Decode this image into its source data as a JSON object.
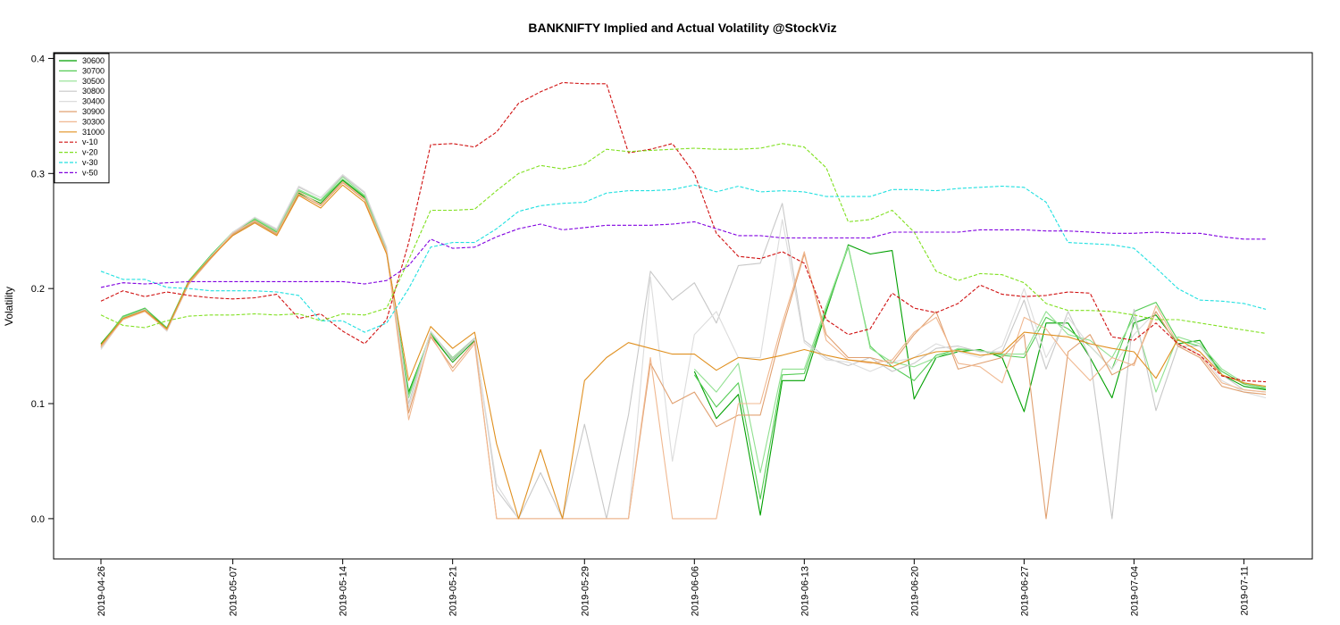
{
  "chart_data": {
    "type": "line",
    "title": "BANKNIFTY Implied and Actual Volatility @StockViz",
    "xlabel": "",
    "ylabel": "Volatility",
    "ylim": [
      -0.035,
      0.405
    ],
    "y_ticks": [
      0.0,
      0.1,
      0.2,
      0.3,
      0.4
    ],
    "y_tick_labels": [
      "0.0",
      "0.1",
      "0.2",
      "0.3",
      "0.4"
    ],
    "x": [
      "2019-04-26",
      "2019-04-29",
      "2019-04-30",
      "2019-05-02",
      "2019-05-03",
      "2019-05-06",
      "2019-05-07",
      "2019-05-08",
      "2019-05-09",
      "2019-05-10",
      "2019-05-13",
      "2019-05-14",
      "2019-05-15",
      "2019-05-16",
      "2019-05-17",
      "2019-05-20",
      "2019-05-21",
      "2019-05-22",
      "2019-05-23",
      "2019-05-24",
      "2019-05-27",
      "2019-05-28",
      "2019-05-29",
      "2019-05-30",
      "2019-05-31",
      "2019-06-03",
      "2019-06-04",
      "2019-06-06",
      "2019-06-07",
      "2019-06-10",
      "2019-06-11",
      "2019-06-12",
      "2019-06-13",
      "2019-06-14",
      "2019-06-17",
      "2019-06-18",
      "2019-06-19",
      "2019-06-20",
      "2019-06-21",
      "2019-06-24",
      "2019-06-25",
      "2019-06-26",
      "2019-06-27",
      "2019-06-28",
      "2019-07-01",
      "2019-07-02",
      "2019-07-03",
      "2019-07-04",
      "2019-07-05",
      "2019-07-08",
      "2019-07-09",
      "2019-07-10",
      "2019-07-11",
      "2019-07-12"
    ],
    "x_tick_labels": [
      "2019-04-26",
      "2019-05-07",
      "2019-05-14",
      "2019-05-21",
      "2019-05-29",
      "2019-06-06",
      "2019-06-13",
      "2019-06-20",
      "2019-06-27",
      "2019-07-04",
      "2019-07-11"
    ],
    "grid": false,
    "legend_position": "top-left",
    "series": [
      {
        "name": "30600",
        "color": "#00a000",
        "dash": "solid",
        "values": [
          0.152,
          0.175,
          0.183,
          0.165,
          0.205,
          0.227,
          0.247,
          0.258,
          0.248,
          0.283,
          0.274,
          0.294,
          0.279,
          0.232,
          0.11,
          0.16,
          0.136,
          0.155,
          null,
          null,
          null,
          null,
          null,
          null,
          null,
          null,
          null,
          0.128,
          0.087,
          0.108,
          0.003,
          0.12,
          0.12,
          0.18,
          0.238,
          0.23,
          0.233,
          0.104,
          0.14,
          0.145,
          0.147,
          0.14,
          0.093,
          0.17,
          0.17,
          0.14,
          0.105,
          0.17,
          0.177,
          0.152,
          0.155,
          0.125,
          0.115,
          0.112
        ]
      },
      {
        "name": "30700",
        "color": "#55cc55",
        "dash": "solid",
        "values": [
          0.151,
          0.176,
          0.183,
          0.166,
          0.207,
          0.229,
          0.249,
          0.26,
          0.249,
          0.285,
          0.276,
          0.295,
          0.28,
          0.233,
          0.108,
          0.161,
          0.138,
          0.156,
          null,
          null,
          null,
          null,
          null,
          null,
          null,
          null,
          null,
          0.125,
          0.097,
          0.118,
          0.017,
          0.125,
          0.126,
          0.182,
          0.236,
          0.15,
          0.132,
          0.12,
          0.142,
          0.147,
          0.146,
          0.142,
          0.14,
          0.175,
          0.165,
          0.15,
          0.13,
          0.18,
          0.188,
          0.155,
          0.15,
          0.128,
          0.117,
          0.113
        ]
      },
      {
        "name": "30500",
        "color": "#90e090",
        "dash": "solid",
        "values": [
          0.149,
          0.175,
          0.182,
          0.164,
          0.206,
          0.228,
          0.249,
          0.261,
          0.25,
          0.286,
          0.277,
          0.297,
          0.281,
          0.234,
          0.105,
          0.162,
          0.14,
          0.157,
          null,
          null,
          null,
          null,
          null,
          null,
          null,
          null,
          null,
          0.13,
          0.11,
          0.135,
          0.04,
          0.13,
          0.13,
          0.185,
          0.237,
          0.148,
          0.136,
          0.132,
          0.14,
          0.148,
          0.146,
          0.143,
          0.143,
          0.18,
          0.16,
          0.155,
          0.14,
          0.175,
          0.11,
          0.158,
          0.152,
          0.13,
          0.118,
          0.114
        ]
      },
      {
        "name": "30800",
        "color": "#c8c8c8",
        "dash": "solid",
        "values": [
          0.148,
          0.174,
          0.182,
          0.163,
          0.205,
          0.228,
          0.248,
          0.262,
          0.251,
          0.288,
          0.279,
          0.298,
          0.283,
          0.235,
          0.1,
          0.163,
          0.139,
          0.157,
          0.025,
          0.0,
          0.04,
          0.0,
          0.082,
          0.0,
          0.09,
          0.215,
          0.19,
          0.205,
          0.17,
          0.22,
          0.222,
          0.274,
          0.155,
          0.14,
          0.133,
          0.14,
          0.128,
          0.135,
          0.148,
          0.15,
          0.145,
          0.145,
          0.19,
          0.13,
          0.18,
          0.14,
          0.0,
          0.182,
          0.094,
          0.15,
          0.15,
          0.125,
          0.112,
          0.11
        ]
      },
      {
        "name": "30400",
        "color": "#dcdcdc",
        "dash": "solid",
        "values": [
          0.147,
          0.174,
          0.181,
          0.163,
          0.204,
          0.227,
          0.249,
          0.262,
          0.252,
          0.289,
          0.279,
          0.299,
          0.284,
          0.236,
          0.096,
          0.163,
          0.137,
          0.156,
          0.03,
          0.0,
          0.0,
          0.0,
          0.0,
          0.0,
          0.0,
          0.21,
          0.05,
          0.16,
          0.18,
          0.14,
          0.14,
          0.26,
          0.153,
          0.138,
          0.136,
          0.128,
          0.136,
          0.14,
          0.152,
          0.145,
          0.14,
          0.15,
          0.2,
          0.14,
          0.175,
          0.15,
          0.13,
          0.16,
          0.18,
          0.15,
          0.145,
          0.12,
          0.11,
          0.105
        ]
      },
      {
        "name": "30900",
        "color": "#e0a070",
        "dash": "solid",
        "values": [
          0.15,
          0.173,
          0.181,
          0.164,
          0.204,
          0.226,
          0.247,
          0.258,
          0.247,
          0.282,
          0.272,
          0.292,
          0.277,
          0.231,
          0.092,
          0.158,
          0.131,
          0.154,
          0.0,
          0.0,
          0.0,
          0.0,
          0.0,
          0.0,
          0.0,
          0.135,
          0.1,
          0.11,
          0.08,
          0.09,
          0.09,
          0.165,
          0.23,
          0.16,
          0.14,
          0.14,
          0.135,
          0.16,
          0.18,
          0.13,
          0.135,
          0.14,
          0.16,
          0.0,
          0.145,
          0.16,
          0.125,
          0.135,
          0.18,
          0.15,
          0.14,
          0.115,
          0.11,
          0.108
        ]
      },
      {
        "name": "30300",
        "color": "#f0b890",
        "dash": "solid",
        "values": [
          0.149,
          0.173,
          0.18,
          0.164,
          0.205,
          0.227,
          0.248,
          0.259,
          0.248,
          0.284,
          0.273,
          0.293,
          0.278,
          0.232,
          0.086,
          0.16,
          0.128,
          0.152,
          0.0,
          0.0,
          0.0,
          0.0,
          0.0,
          0.0,
          0.0,
          0.14,
          0.0,
          0.0,
          0.0,
          0.1,
          0.1,
          0.17,
          0.232,
          0.155,
          0.138,
          0.135,
          0.138,
          0.162,
          0.175,
          0.135,
          0.132,
          0.118,
          0.175,
          0.165,
          0.14,
          0.12,
          0.14,
          0.133,
          0.185,
          0.152,
          0.142,
          0.118,
          0.112,
          0.11
        ]
      },
      {
        "name": "31000",
        "color": "#e09020",
        "dash": "solid",
        "values": [
          0.151,
          0.174,
          0.181,
          0.165,
          0.206,
          0.227,
          0.246,
          0.257,
          0.246,
          0.281,
          0.27,
          0.29,
          0.275,
          0.23,
          0.12,
          0.167,
          0.148,
          0.162,
          0.065,
          0.0,
          0.06,
          0.0,
          0.12,
          0.14,
          0.153,
          0.148,
          0.143,
          0.143,
          0.129,
          0.14,
          0.138,
          0.142,
          0.147,
          0.142,
          0.138,
          0.136,
          0.132,
          0.14,
          0.145,
          0.146,
          0.142,
          0.144,
          0.162,
          0.16,
          0.158,
          0.152,
          0.148,
          0.145,
          0.122,
          0.156,
          0.145,
          0.125,
          0.118,
          0.115
        ]
      },
      {
        "name": "v-10",
        "color": "#d01010",
        "dash": "4,2",
        "values": [
          0.189,
          0.198,
          0.193,
          0.197,
          0.194,
          0.192,
          0.191,
          0.192,
          0.195,
          0.174,
          0.178,
          0.163,
          0.152,
          0.173,
          0.24,
          0.325,
          0.326,
          0.323,
          0.336,
          0.361,
          0.371,
          0.379,
          0.378,
          0.378,
          0.318,
          0.321,
          0.326,
          0.3,
          0.248,
          0.228,
          0.226,
          0.232,
          0.222,
          0.173,
          0.16,
          0.165,
          0.196,
          0.183,
          0.179,
          0.187,
          0.203,
          0.195,
          0.193,
          0.194,
          0.197,
          0.196,
          0.158,
          0.155,
          0.17,
          0.152,
          0.142,
          0.124,
          0.12,
          0.119
        ]
      },
      {
        "name": "v-20",
        "color": "#80e020",
        "dash": "4,2",
        "values": [
          0.177,
          0.168,
          0.166,
          0.172,
          0.176,
          0.177,
          0.177,
          0.178,
          0.177,
          0.178,
          0.172,
          0.178,
          0.177,
          0.183,
          0.225,
          0.268,
          0.268,
          0.269,
          0.285,
          0.3,
          0.307,
          0.304,
          0.308,
          0.321,
          0.319,
          0.32,
          0.321,
          0.322,
          0.321,
          0.321,
          0.322,
          0.326,
          0.323,
          0.305,
          0.258,
          0.26,
          0.268,
          0.249,
          0.215,
          0.207,
          0.213,
          0.212,
          0.205,
          0.187,
          0.181,
          0.181,
          0.18,
          0.177,
          0.173,
          0.173,
          0.17,
          0.167,
          0.164,
          0.161
        ]
      },
      {
        "name": "v-30",
        "color": "#20e0e0",
        "dash": "4,2",
        "values": [
          0.215,
          0.208,
          0.208,
          0.201,
          0.2,
          0.198,
          0.198,
          0.198,
          0.197,
          0.194,
          0.172,
          0.172,
          0.162,
          0.17,
          0.2,
          0.236,
          0.24,
          0.24,
          0.252,
          0.267,
          0.272,
          0.274,
          0.275,
          0.283,
          0.285,
          0.285,
          0.286,
          0.29,
          0.284,
          0.289,
          0.284,
          0.285,
          0.284,
          0.28,
          0.28,
          0.28,
          0.286,
          0.286,
          0.285,
          0.287,
          0.288,
          0.289,
          0.288,
          0.275,
          0.24,
          0.239,
          0.238,
          0.235,
          0.218,
          0.2,
          0.19,
          0.189,
          0.187,
          0.182
        ]
      },
      {
        "name": "v-50",
        "color": "#8000e0",
        "dash": "4,2",
        "values": [
          0.201,
          0.205,
          0.204,
          0.205,
          0.206,
          0.206,
          0.206,
          0.206,
          0.206,
          0.206,
          0.206,
          0.206,
          0.204,
          0.207,
          0.22,
          0.243,
          0.235,
          0.236,
          0.245,
          0.252,
          0.256,
          0.251,
          0.253,
          0.255,
          0.255,
          0.255,
          0.256,
          0.258,
          0.252,
          0.246,
          0.246,
          0.244,
          0.244,
          0.244,
          0.244,
          0.244,
          0.249,
          0.249,
          0.249,
          0.249,
          0.251,
          0.251,
          0.251,
          0.25,
          0.25,
          0.249,
          0.248,
          0.248,
          0.249,
          0.248,
          0.248,
          0.245,
          0.243,
          0.243
        ]
      }
    ]
  }
}
